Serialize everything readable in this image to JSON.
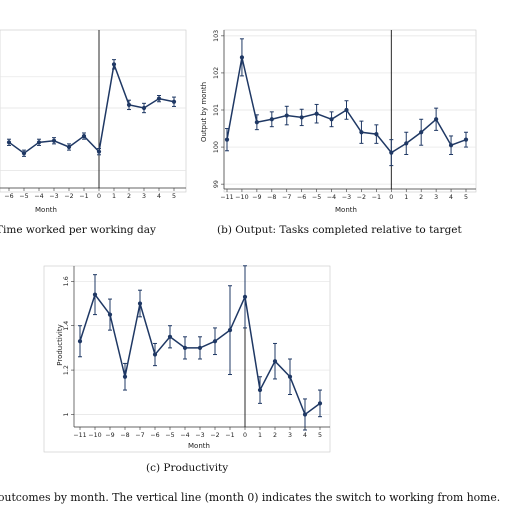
{
  "chart_data": [
    {
      "type": "line",
      "caption": "Time worked per working day",
      "xlabel": "Month",
      "ylabel": "",
      "x": [
        -6,
        -5,
        -4,
        -3,
        -2,
        -1,
        0,
        1,
        2,
        3,
        4,
        5
      ],
      "x_tick_labels": [
        "−6",
        "−5",
        "−4",
        "−3",
        "−2",
        "−1",
        "0",
        "1",
        "2",
        "3",
        "4",
        "5"
      ],
      "y_tick_labels": [],
      "ylim": [
        0,
        100
      ],
      "series": [
        {
          "values": [
            28,
            21,
            28,
            29,
            25,
            32,
            22,
            78,
            52,
            50,
            56,
            54
          ],
          "err": [
            2,
            2,
            2,
            2,
            2,
            2,
            2,
            3,
            3,
            3,
            2,
            3
          ]
        }
      ],
      "vline": 0,
      "grid": true,
      "color": "#1f3864"
    },
    {
      "type": "line",
      "caption": "(b) Output: Tasks completed relative to target",
      "xlabel": "Month",
      "ylabel": "Output by month",
      "x": [
        -11,
        -10,
        -9,
        -8,
        -7,
        -6,
        -5,
        -4,
        -3,
        -2,
        -1,
        0,
        1,
        2,
        3,
        4,
        5
      ],
      "x_tick_labels": [
        "−11",
        "−10",
        "−9",
        "−8",
        "−7",
        "−6",
        "−5",
        "−4",
        "−3",
        "−2",
        "−1",
        "0",
        "1",
        "2",
        "3",
        "4",
        "5"
      ],
      "y_ticks": [
        99,
        100,
        101,
        102,
        103
      ],
      "y_tick_labels": [
        "99",
        "100",
        "101",
        "102",
        "103"
      ],
      "ylim": [
        98.95,
        103.05
      ],
      "series": [
        {
          "values": [
            100.2,
            102.42,
            100.67,
            100.75,
            100.85,
            100.8,
            100.9,
            100.75,
            101.0,
            100.4,
            100.35,
            99.85,
            100.1,
            100.4,
            100.75,
            100.05,
            100.2
          ],
          "err": [
            0.3,
            0.5,
            0.2,
            0.2,
            0.25,
            0.22,
            0.25,
            0.2,
            0.25,
            0.3,
            0.25,
            0.35,
            0.3,
            0.35,
            0.3,
            0.25,
            0.2
          ]
        }
      ],
      "vline": 0,
      "grid": true,
      "color": "#1f3864"
    },
    {
      "type": "line",
      "caption": "(c) Productivity",
      "xlabel": "Month",
      "ylabel": "Productivity",
      "x": [
        -11,
        -10,
        -9,
        -8,
        -7,
        -6,
        -5,
        -4,
        -3,
        -2,
        -1,
        0,
        1,
        2,
        3,
        4,
        5
      ],
      "x_tick_labels": [
        "−11",
        "−10",
        "−9",
        "−8",
        "−7",
        "−6",
        "−5",
        "−4",
        "−3",
        "−2",
        "−1",
        "0",
        "1",
        "2",
        "3",
        "4",
        "5"
      ],
      "y_ticks": [
        1,
        1.2,
        1.4,
        1.6
      ],
      "y_tick_labels": [
        "1",
        "1.2",
        "1.4",
        "1.6"
      ],
      "ylim": [
        0.93,
        1.66
      ],
      "series": [
        {
          "values": [
            1.33,
            1.54,
            1.45,
            1.17,
            1.5,
            1.27,
            1.35,
            1.3,
            1.3,
            1.33,
            1.38,
            1.53,
            1.11,
            1.24,
            1.17,
            1.0,
            1.05
          ],
          "err": [
            0.07,
            0.09,
            0.07,
            0.06,
            0.06,
            0.05,
            0.05,
            0.05,
            0.05,
            0.06,
            0.2,
            0.14,
            0.06,
            0.08,
            0.08,
            0.07,
            0.06
          ]
        }
      ],
      "vline": 0,
      "grid": true,
      "color": "#1f3864"
    }
  ],
  "figure_caption": "outcomes by month.  The vertical line (month 0) indicates the switch to working from home."
}
